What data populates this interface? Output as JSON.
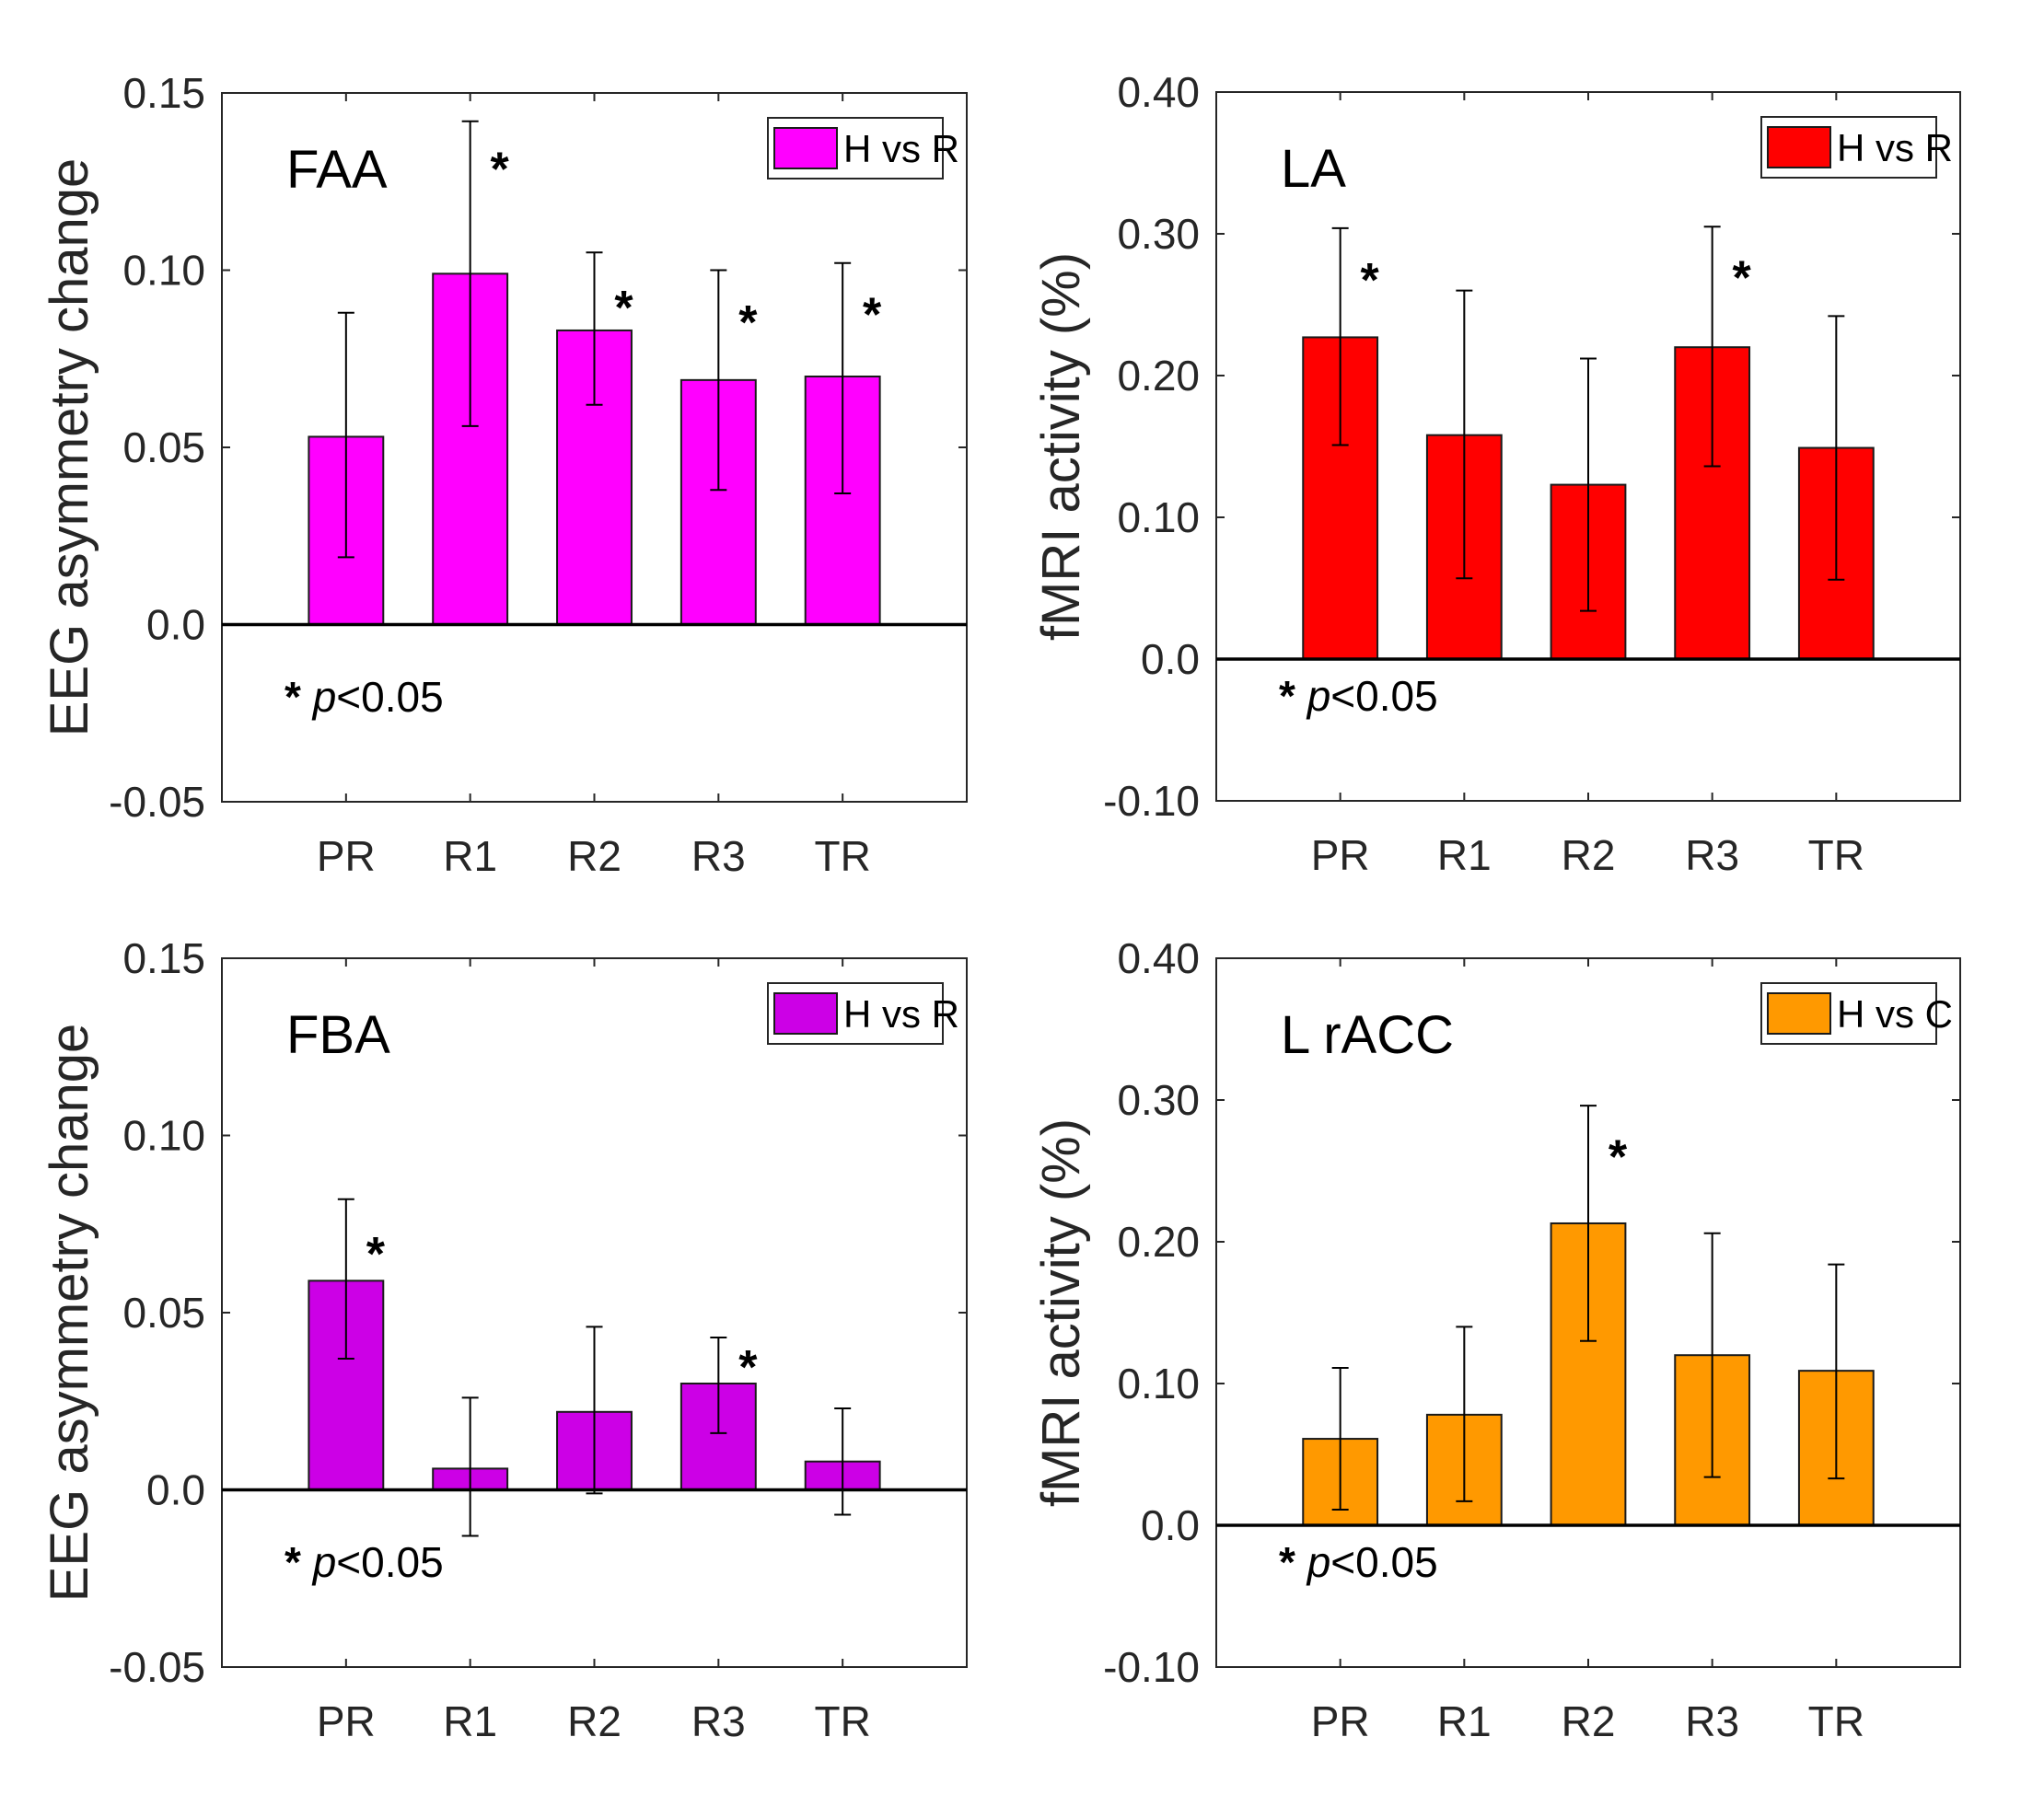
{
  "chart_data": [
    {
      "type": "bar",
      "panel": "top-left",
      "title": "FAA",
      "ylabel": "EEG asymmetry change",
      "xlabel": "",
      "categories": [
        "PR",
        "R1",
        "R2",
        "R3",
        "TR"
      ],
      "ylim": [
        -0.05,
        0.15
      ],
      "yticks": [
        -0.05,
        0.0,
        0.05,
        0.1,
        0.15
      ],
      "ytick_labels": [
        "-0.05",
        "0.0",
        "0.05",
        "0.10",
        "0.15"
      ],
      "series": [
        {
          "name": "H vs R",
          "color": "#FF00FF",
          "values": [
            0.053,
            0.099,
            0.083,
            0.069,
            0.07
          ],
          "error_lower": [
            0.019,
            0.056,
            0.062,
            0.038,
            0.037
          ],
          "error_upper": [
            0.088,
            0.142,
            0.105,
            0.1,
            0.102
          ]
        }
      ],
      "significant": [
        false,
        true,
        true,
        true,
        true
      ],
      "legend": "top-right",
      "annotation": {
        "star": "*",
        "p": "p",
        "rest": "<0.05"
      },
      "grid": false
    },
    {
      "type": "bar",
      "panel": "top-right",
      "title": "LA",
      "ylabel": "fMRI activity (%)",
      "xlabel": "",
      "categories": [
        "PR",
        "R1",
        "R2",
        "R3",
        "TR"
      ],
      "ylim": [
        -0.1,
        0.4
      ],
      "yticks": [
        -0.1,
        0.0,
        0.1,
        0.2,
        0.3,
        0.4
      ],
      "ytick_labels": [
        "-0.10",
        "0.0",
        "0.10",
        "0.20",
        "0.30",
        "0.40"
      ],
      "series": [
        {
          "name": "H vs R",
          "color": "#FF0000",
          "values": [
            0.227,
            0.158,
            0.123,
            0.22,
            0.149
          ],
          "error_lower": [
            0.151,
            0.057,
            0.034,
            0.136,
            0.056
          ],
          "error_upper": [
            0.304,
            0.26,
            0.212,
            0.305,
            0.242
          ]
        }
      ],
      "significant": [
        true,
        false,
        false,
        true,
        false
      ],
      "legend": "top-right",
      "annotation": {
        "star": "*",
        "p": "p",
        "rest": "<0.05"
      },
      "grid": false
    },
    {
      "type": "bar",
      "panel": "bottom-left",
      "title": "FBA",
      "ylabel": "EEG asymmetry change",
      "xlabel": "",
      "categories": [
        "PR",
        "R1",
        "R2",
        "R3",
        "TR"
      ],
      "ylim": [
        -0.05,
        0.15
      ],
      "yticks": [
        -0.05,
        0.0,
        0.05,
        0.1,
        0.15
      ],
      "ytick_labels": [
        "-0.05",
        "0.0",
        "0.05",
        "0.10",
        "0.15"
      ],
      "series": [
        {
          "name": "H vs R",
          "color": "#CC00E6",
          "values": [
            0.059,
            0.006,
            0.022,
            0.03,
            0.008
          ],
          "error_lower": [
            0.037,
            -0.013,
            -0.001,
            0.016,
            -0.007
          ],
          "error_upper": [
            0.082,
            0.026,
            0.046,
            0.043,
            0.023
          ]
        }
      ],
      "significant": [
        true,
        false,
        false,
        true,
        false
      ],
      "legend": "top-right",
      "annotation": {
        "star": "*",
        "p": "p",
        "rest": "<0.05"
      },
      "grid": false
    },
    {
      "type": "bar",
      "panel": "bottom-right",
      "title": "L rACC",
      "ylabel": "fMRI activity (%)",
      "xlabel": "",
      "categories": [
        "PR",
        "R1",
        "R2",
        "R3",
        "TR"
      ],
      "ylim": [
        -0.1,
        0.4
      ],
      "yticks": [
        -0.1,
        0.0,
        0.1,
        0.2,
        0.3,
        0.4
      ],
      "ytick_labels": [
        "-0.10",
        "0.0",
        "0.10",
        "0.20",
        "0.30",
        "0.40"
      ],
      "series": [
        {
          "name": "H vs C",
          "color": "#FF9900",
          "values": [
            0.061,
            0.078,
            0.213,
            0.12,
            0.109
          ],
          "error_lower": [
            0.011,
            0.017,
            0.13,
            0.034,
            0.033
          ],
          "error_upper": [
            0.111,
            0.14,
            0.296,
            0.206,
            0.184
          ]
        }
      ],
      "significant": [
        false,
        false,
        true,
        false,
        false
      ],
      "legend": "top-right",
      "annotation": {
        "star": "*",
        "p": "p",
        "rest": "<0.05"
      },
      "grid": false
    }
  ]
}
